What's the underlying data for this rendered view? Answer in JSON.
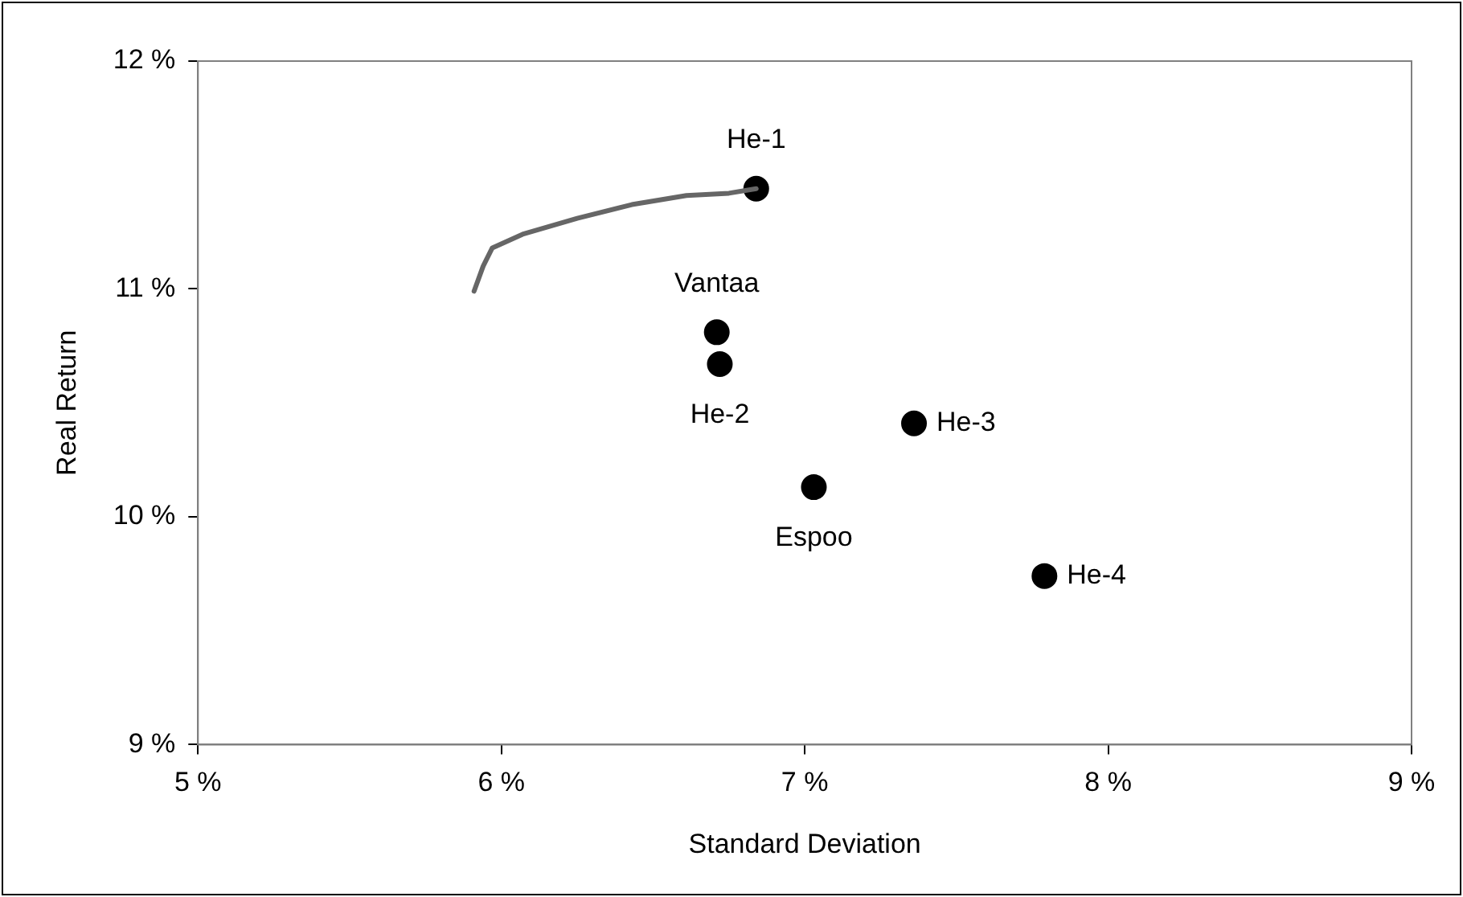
{
  "chart_data": {
    "type": "scatter",
    "xlabel": "Standard Deviation",
    "ylabel": "Real Return",
    "grid": false,
    "legend": false,
    "marker": "circle",
    "xlim": [
      5,
      9
    ],
    "ylim": [
      9,
      12
    ],
    "xticks": [
      {
        "value": 5,
        "label": "5 %"
      },
      {
        "value": 6,
        "label": "6 %"
      },
      {
        "value": 7,
        "label": "7 %"
      },
      {
        "value": 8,
        "label": "8 %"
      },
      {
        "value": 9,
        "label": "9 %"
      }
    ],
    "yticks": [
      {
        "value": 9,
        "label": "9 %"
      },
      {
        "value": 10,
        "label": "10 %"
      },
      {
        "value": 11,
        "label": "11 %"
      },
      {
        "value": 12,
        "label": "12 %"
      }
    ],
    "series": [
      {
        "type": "line",
        "color": "#666666",
        "marker": "none",
        "x": [
          5.91,
          5.94,
          5.97,
          6.07,
          6.25,
          6.43,
          6.61,
          6.75,
          6.84
        ],
        "values": [
          10.99,
          11.1,
          11.18,
          11.24,
          11.31,
          11.37,
          11.41,
          11.42,
          11.44
        ]
      },
      {
        "color": "#000000",
        "x": [
          6.84,
          6.71,
          6.72,
          7.36,
          7.03,
          7.79
        ],
        "values": [
          11.44,
          10.81,
          10.67,
          10.41,
          10.13,
          9.74
        ]
      }
    ],
    "annotations": [
      {
        "text": "He-1",
        "x": 6.84,
        "y": 11.44
      },
      {
        "text": "Vantaa",
        "x": 6.71,
        "y": 10.81
      },
      {
        "text": "He-2",
        "x": 6.72,
        "y": 10.67
      },
      {
        "text": "He-3",
        "x": 7.36,
        "y": 10.41
      },
      {
        "text": "Espoo",
        "x": 7.03,
        "y": 10.13
      },
      {
        "text": "He-4",
        "x": 7.79,
        "y": 9.74
      }
    ]
  }
}
